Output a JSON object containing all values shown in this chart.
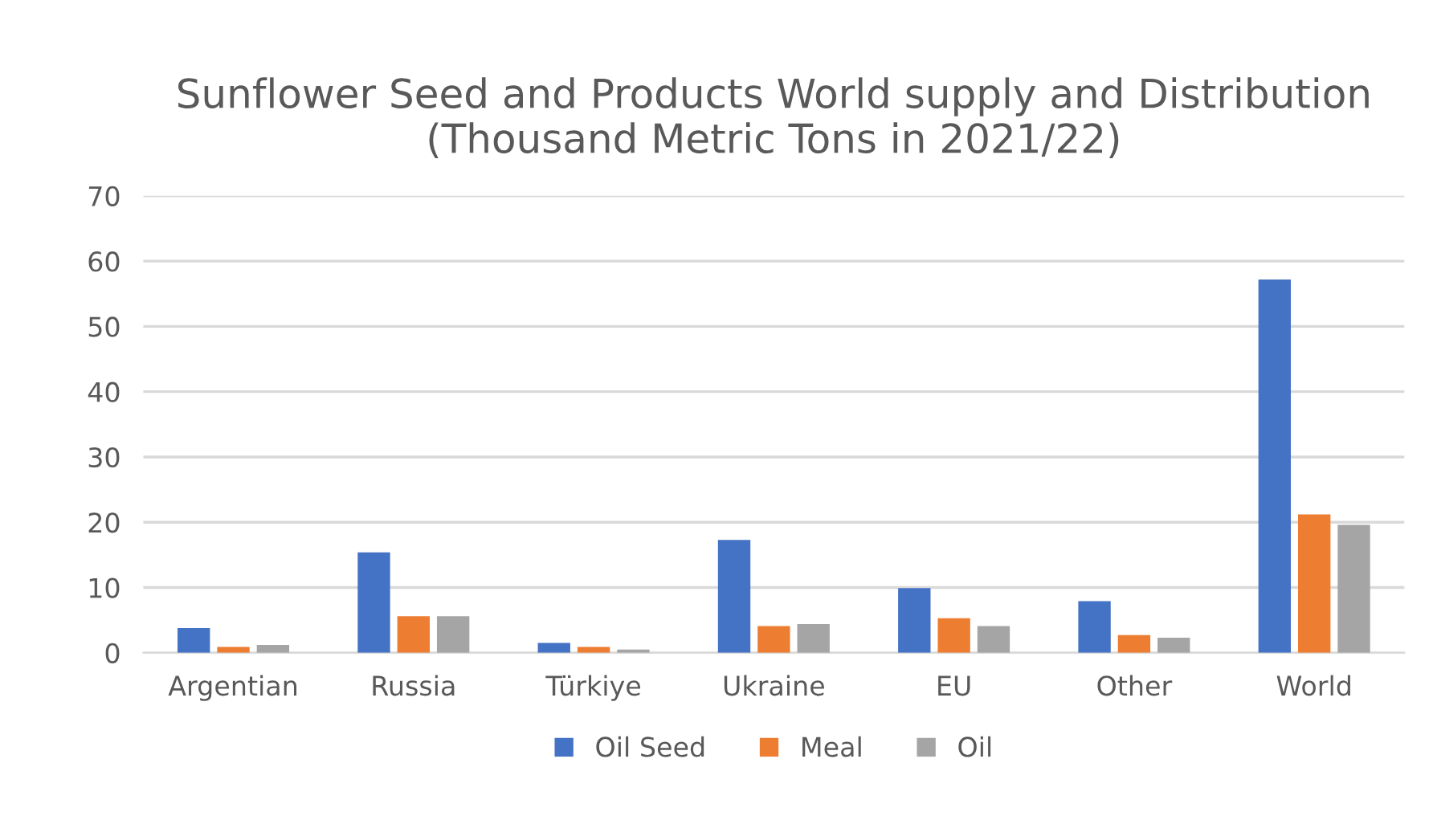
{
  "chart_data": {
    "type": "bar",
    "title": "Sunflower Seed and Products World supply and Distribution (Thousand Metric Tons in 2021/22)",
    "categories": [
      "Argentian",
      "Russia",
      "Türkiye",
      "Ukraine",
      "EU",
      "Other",
      "World"
    ],
    "series": [
      {
        "name": "Oil Seed",
        "color": "#4472c4",
        "values": [
          3.8,
          15.4,
          1.5,
          17.3,
          9.9,
          7.9,
          57.2
        ]
      },
      {
        "name": "Meal",
        "color": "#ed7d31",
        "values": [
          0.9,
          5.6,
          0.9,
          4.1,
          5.3,
          2.7,
          21.2
        ]
      },
      {
        "name": "Oil",
        "color": "#a5a5a5",
        "values": [
          1.2,
          5.6,
          0.5,
          4.4,
          4.1,
          2.3,
          19.6
        ]
      }
    ],
    "ylim": [
      0,
      70
    ],
    "yticks": [
      0,
      10,
      20,
      30,
      40,
      50,
      60,
      70
    ],
    "grid": "y",
    "legend": "bottom"
  }
}
